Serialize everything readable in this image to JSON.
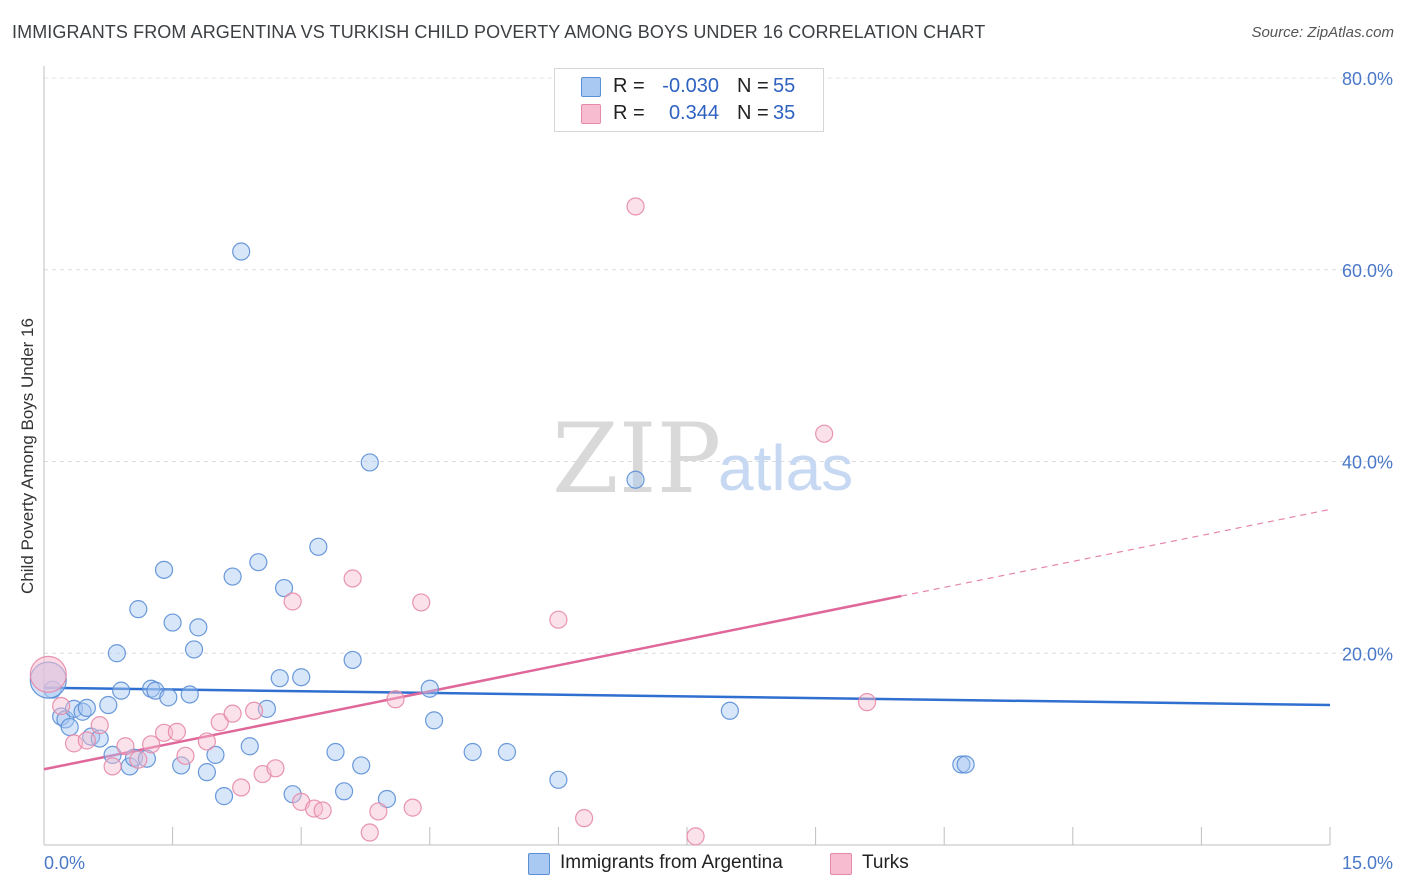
{
  "title": "IMMIGRANTS FROM ARGENTINA VS TURKISH CHILD POVERTY AMONG BOYS UNDER 16 CORRELATION CHART",
  "source": "Source: ZipAtlas.com",
  "watermark": {
    "part1": "ZIP",
    "part2": "atlas"
  },
  "stats": [
    {
      "r_label": "R =",
      "r_value": "-0.030",
      "n_label": "N =",
      "n_value": "55",
      "color": "#a9c8f2",
      "border": "#5b8fd6"
    },
    {
      "r_label": "R =",
      "r_value": "0.344",
      "n_label": "N =",
      "n_value": "35",
      "color": "#f7bccf",
      "border": "#e58aa8"
    }
  ],
  "legend": [
    {
      "label": "Immigrants from Argentina",
      "color": "#a9c8f2",
      "border": "#5b8fd6"
    },
    {
      "label": "Turks",
      "color": "#f7bccf",
      "border": "#e58aa8"
    }
  ],
  "chart_data": {
    "type": "scatter",
    "title": "IMMIGRANTS FROM ARGENTINA VS TURKISH CHILD POVERTY AMONG BOYS UNDER 16 CORRELATION CHART",
    "xlabel": "",
    "ylabel": "Child Poverty Among Boys Under 16",
    "xlim": [
      0,
      15
    ],
    "ylim": [
      0,
      80
    ],
    "x_tick_labels": [
      "0.0%",
      "15.0%"
    ],
    "y_ticks": [
      20,
      40,
      60,
      80
    ],
    "y_tick_labels": [
      "20.0%",
      "40.0%",
      "60.0%",
      "80.0%"
    ],
    "grid": true,
    "series": [
      {
        "name": "Immigrants from Argentina",
        "color": "#a9c8f2",
        "stroke": "#5b8fd6",
        "trend": {
          "x": [
            0,
            15
          ],
          "y": [
            16.4,
            14.6
          ],
          "color": "#2f6fd0",
          "dashed_from": null
        },
        "points": [
          [
            0.1,
            16.2
          ],
          [
            0.2,
            13.4
          ],
          [
            0.25,
            13.1
          ],
          [
            0.3,
            12.3
          ],
          [
            0.35,
            14.2
          ],
          [
            0.45,
            13.9
          ],
          [
            0.5,
            14.3
          ],
          [
            0.55,
            11.3
          ],
          [
            0.65,
            11.1
          ],
          [
            0.75,
            14.6
          ],
          [
            0.8,
            9.4
          ],
          [
            0.85,
            20.0
          ],
          [
            0.9,
            16.1
          ],
          [
            1.0,
            8.2
          ],
          [
            1.05,
            9.1
          ],
          [
            1.1,
            24.6
          ],
          [
            1.2,
            9.0
          ],
          [
            1.25,
            16.3
          ],
          [
            1.3,
            16.1
          ],
          [
            1.4,
            28.7
          ],
          [
            1.45,
            15.4
          ],
          [
            1.5,
            23.2
          ],
          [
            1.6,
            8.3
          ],
          [
            1.7,
            15.7
          ],
          [
            1.75,
            20.4
          ],
          [
            1.8,
            22.7
          ],
          [
            1.9,
            7.6
          ],
          [
            2.0,
            9.4
          ],
          [
            2.1,
            5.1
          ],
          [
            2.2,
            28.0
          ],
          [
            2.3,
            61.9
          ],
          [
            2.4,
            10.3
          ],
          [
            2.5,
            29.5
          ],
          [
            2.6,
            14.2
          ],
          [
            2.75,
            17.4
          ],
          [
            2.8,
            26.8
          ],
          [
            2.9,
            5.3
          ],
          [
            3.0,
            17.5
          ],
          [
            3.2,
            31.1
          ],
          [
            3.4,
            9.7
          ],
          [
            3.5,
            5.6
          ],
          [
            3.6,
            19.3
          ],
          [
            3.7,
            8.3
          ],
          [
            3.8,
            39.9
          ],
          [
            4.0,
            4.8
          ],
          [
            4.5,
            16.3
          ],
          [
            4.55,
            13.0
          ],
          [
            5.0,
            9.7
          ],
          [
            5.4,
            9.7
          ],
          [
            6.0,
            6.8
          ],
          [
            6.9,
            38.1
          ],
          [
            8.0,
            14.0
          ],
          [
            10.7,
            8.4
          ],
          [
            10.75,
            8.4
          ],
          [
            0.05,
            17.2
          ]
        ],
        "sizes": [
          1,
          1,
          1,
          1,
          1,
          1,
          1,
          1,
          1,
          1,
          1,
          1,
          1,
          1,
          1,
          1,
          1,
          1,
          1,
          1,
          1,
          1,
          1,
          1,
          1,
          1,
          1,
          1,
          1,
          1,
          1,
          1,
          1,
          1,
          1,
          1,
          1,
          1,
          1,
          1,
          1,
          1,
          1,
          1,
          1,
          1,
          1,
          1,
          1,
          1,
          1,
          1,
          1,
          1,
          2
        ]
      },
      {
        "name": "Turks",
        "color": "#f7bccf",
        "stroke": "#e58aa8",
        "trend": {
          "x": [
            0,
            15
          ],
          "y": [
            7.9,
            35.0
          ],
          "color": "#e0679a",
          "dashed_from": 10.0
        },
        "points": [
          [
            0.05,
            17.8
          ],
          [
            0.2,
            14.5
          ],
          [
            0.35,
            10.6
          ],
          [
            0.5,
            10.9
          ],
          [
            0.65,
            12.5
          ],
          [
            0.8,
            8.2
          ],
          [
            0.95,
            10.3
          ],
          [
            1.1,
            8.9
          ],
          [
            1.25,
            10.5
          ],
          [
            1.4,
            11.7
          ],
          [
            1.55,
            11.8
          ],
          [
            1.65,
            9.3
          ],
          [
            1.9,
            10.8
          ],
          [
            2.05,
            12.8
          ],
          [
            2.2,
            13.7
          ],
          [
            2.3,
            6.0
          ],
          [
            2.45,
            14.0
          ],
          [
            2.55,
            7.4
          ],
          [
            2.7,
            8.0
          ],
          [
            2.9,
            25.4
          ],
          [
            3.0,
            4.5
          ],
          [
            3.15,
            3.8
          ],
          [
            3.25,
            3.6
          ],
          [
            3.6,
            27.8
          ],
          [
            3.8,
            1.3
          ],
          [
            3.9,
            3.5
          ],
          [
            4.1,
            15.2
          ],
          [
            4.3,
            3.9
          ],
          [
            4.4,
            25.3
          ],
          [
            6.0,
            23.5
          ],
          [
            6.3,
            2.8
          ],
          [
            6.9,
            66.6
          ],
          [
            7.6,
            0.9
          ],
          [
            9.1,
            42.9
          ],
          [
            9.6,
            14.9
          ]
        ],
        "sizes": [
          2,
          1,
          1,
          1,
          1,
          1,
          1,
          1,
          1,
          1,
          1,
          1,
          1,
          1,
          1,
          1,
          1,
          1,
          1,
          1,
          1,
          1,
          1,
          1,
          1,
          1,
          1,
          1,
          1,
          1,
          1,
          1,
          1,
          1,
          1
        ]
      }
    ]
  }
}
